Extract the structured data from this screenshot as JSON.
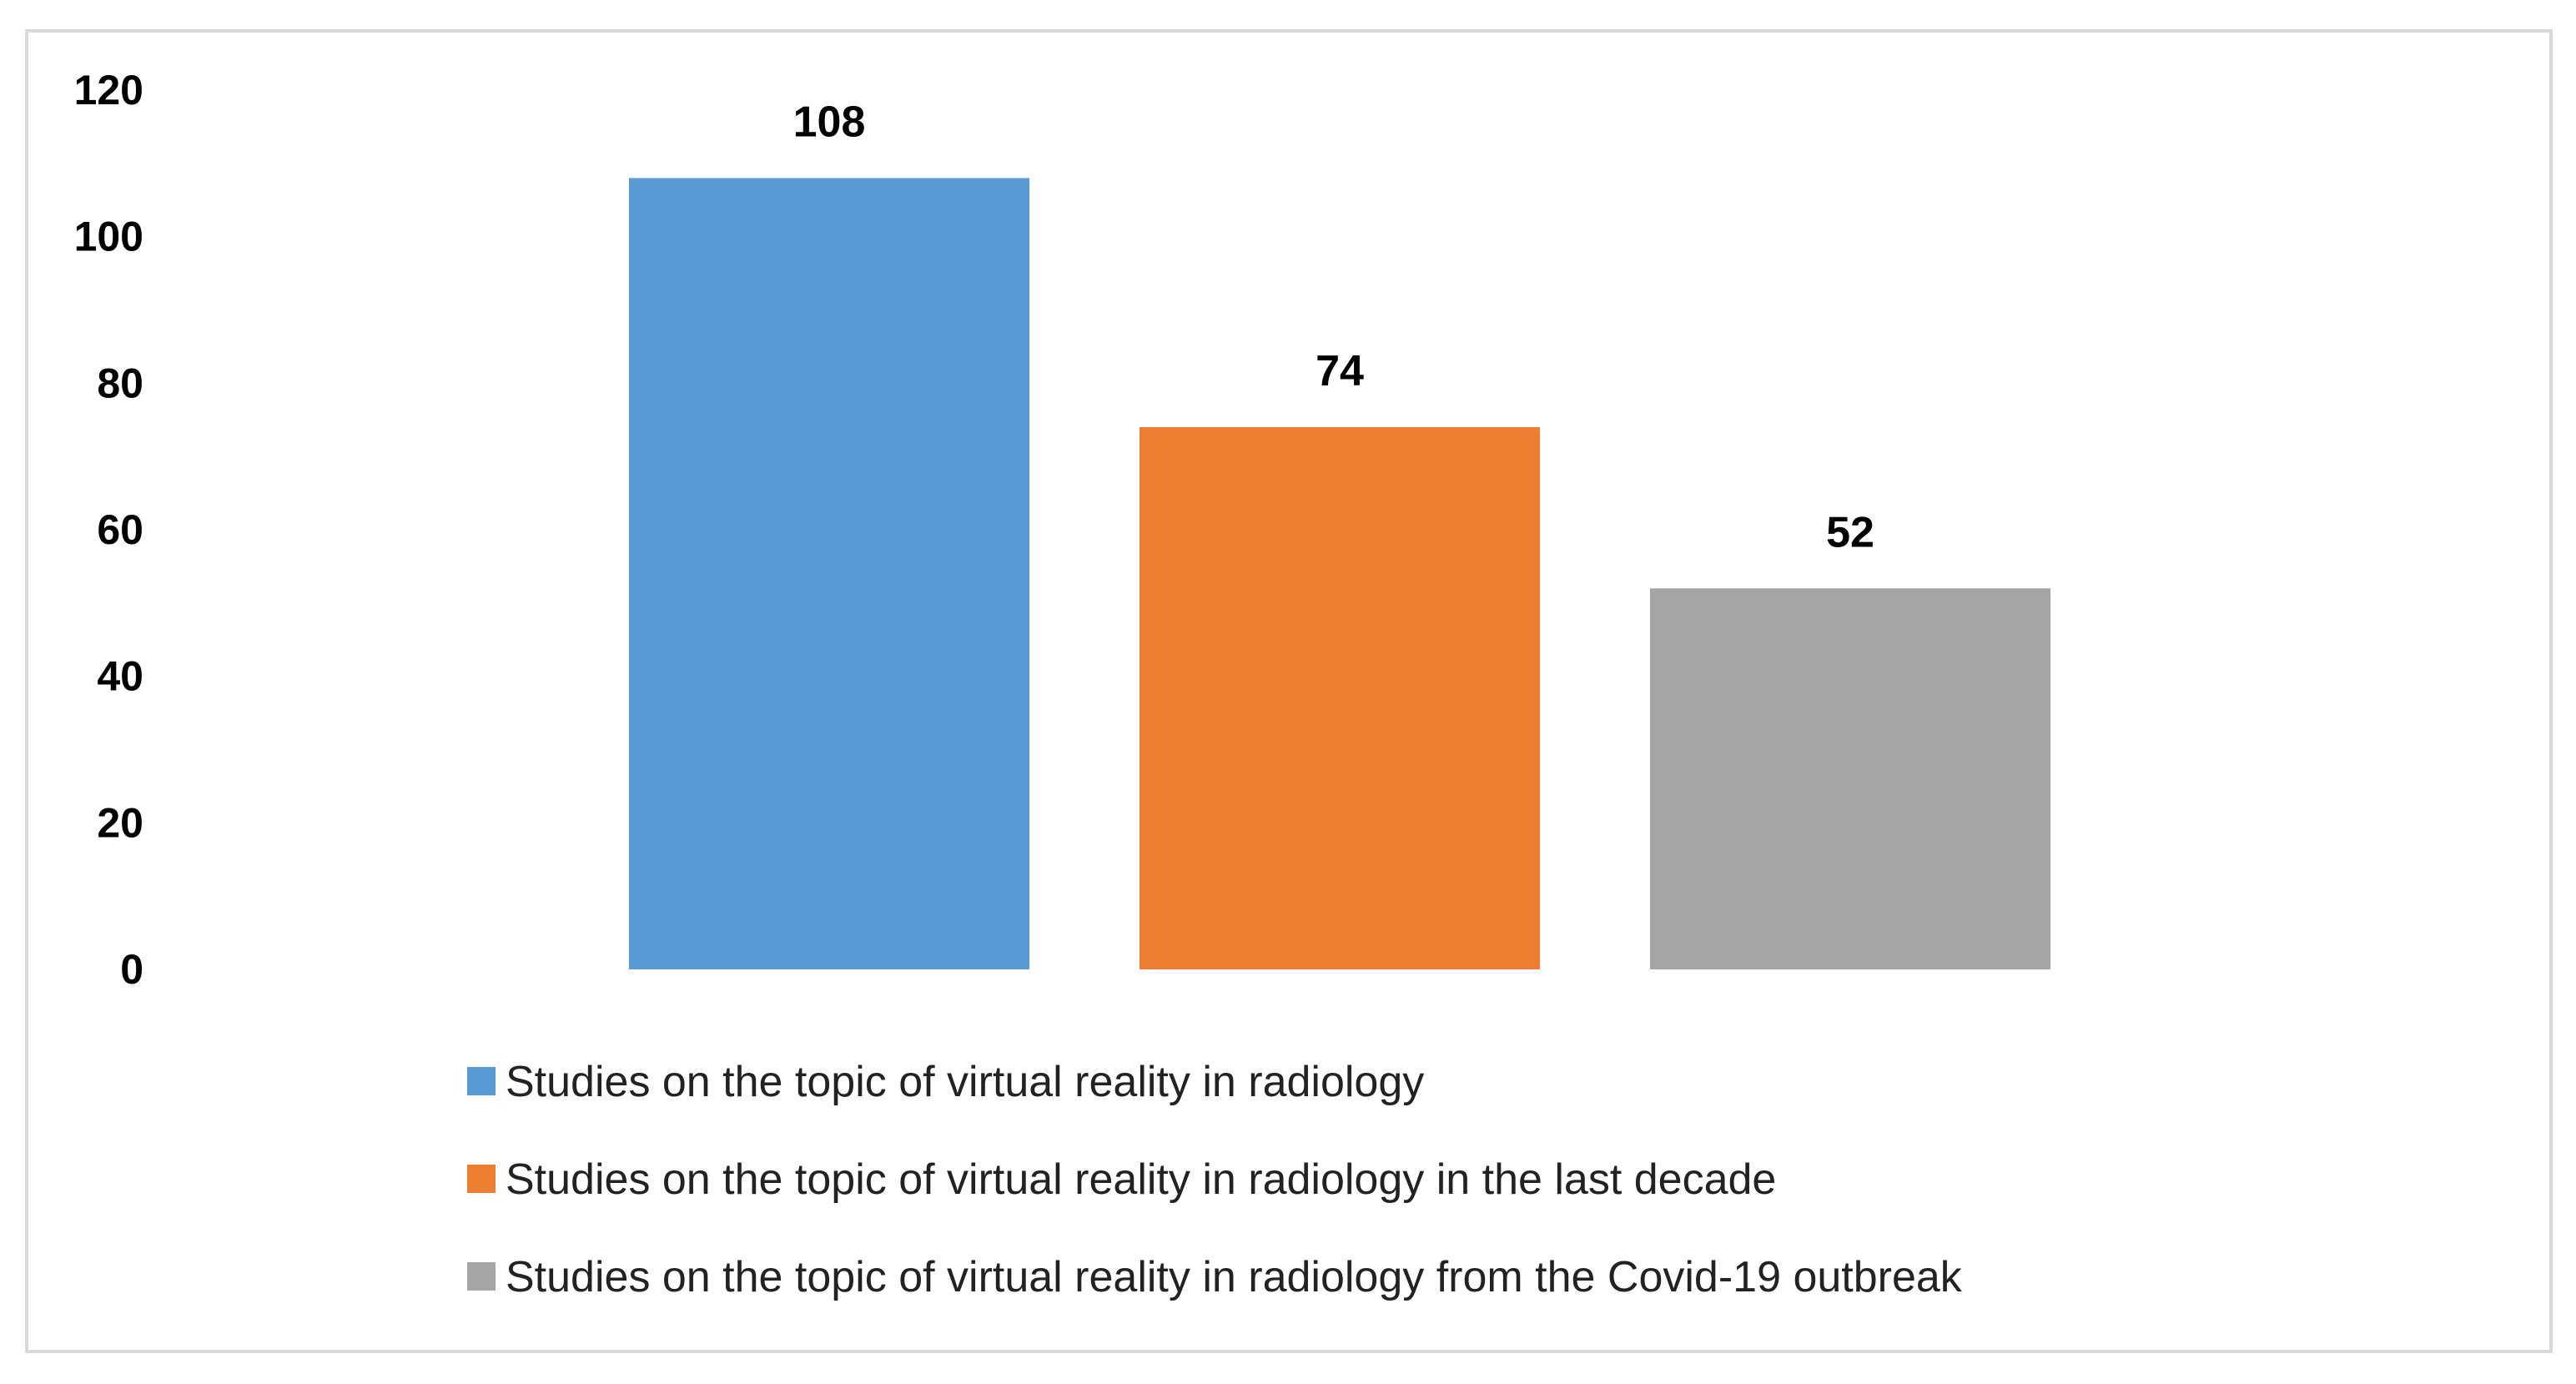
{
  "chart_data": {
    "type": "bar",
    "title": "",
    "xlabel": "",
    "ylabel": "",
    "ylim": [
      0,
      120
    ],
    "yticks": [
      0,
      20,
      40,
      60,
      80,
      100,
      120
    ],
    "grid": false,
    "legend_position": "bottom",
    "series": [
      {
        "name": "Studies on the topic of virtual reality in radiology",
        "value": 108,
        "color": "#5b9bd5"
      },
      {
        "name": "Studies on the topic of virtual reality in radiology in the last decade",
        "value": 74,
        "color": "#ed7d31"
      },
      {
        "name": "Studies on the topic of virtual reality in radiology from the Covid-19 outbreak",
        "value": 52,
        "color": "#a5a5a5"
      }
    ]
  }
}
